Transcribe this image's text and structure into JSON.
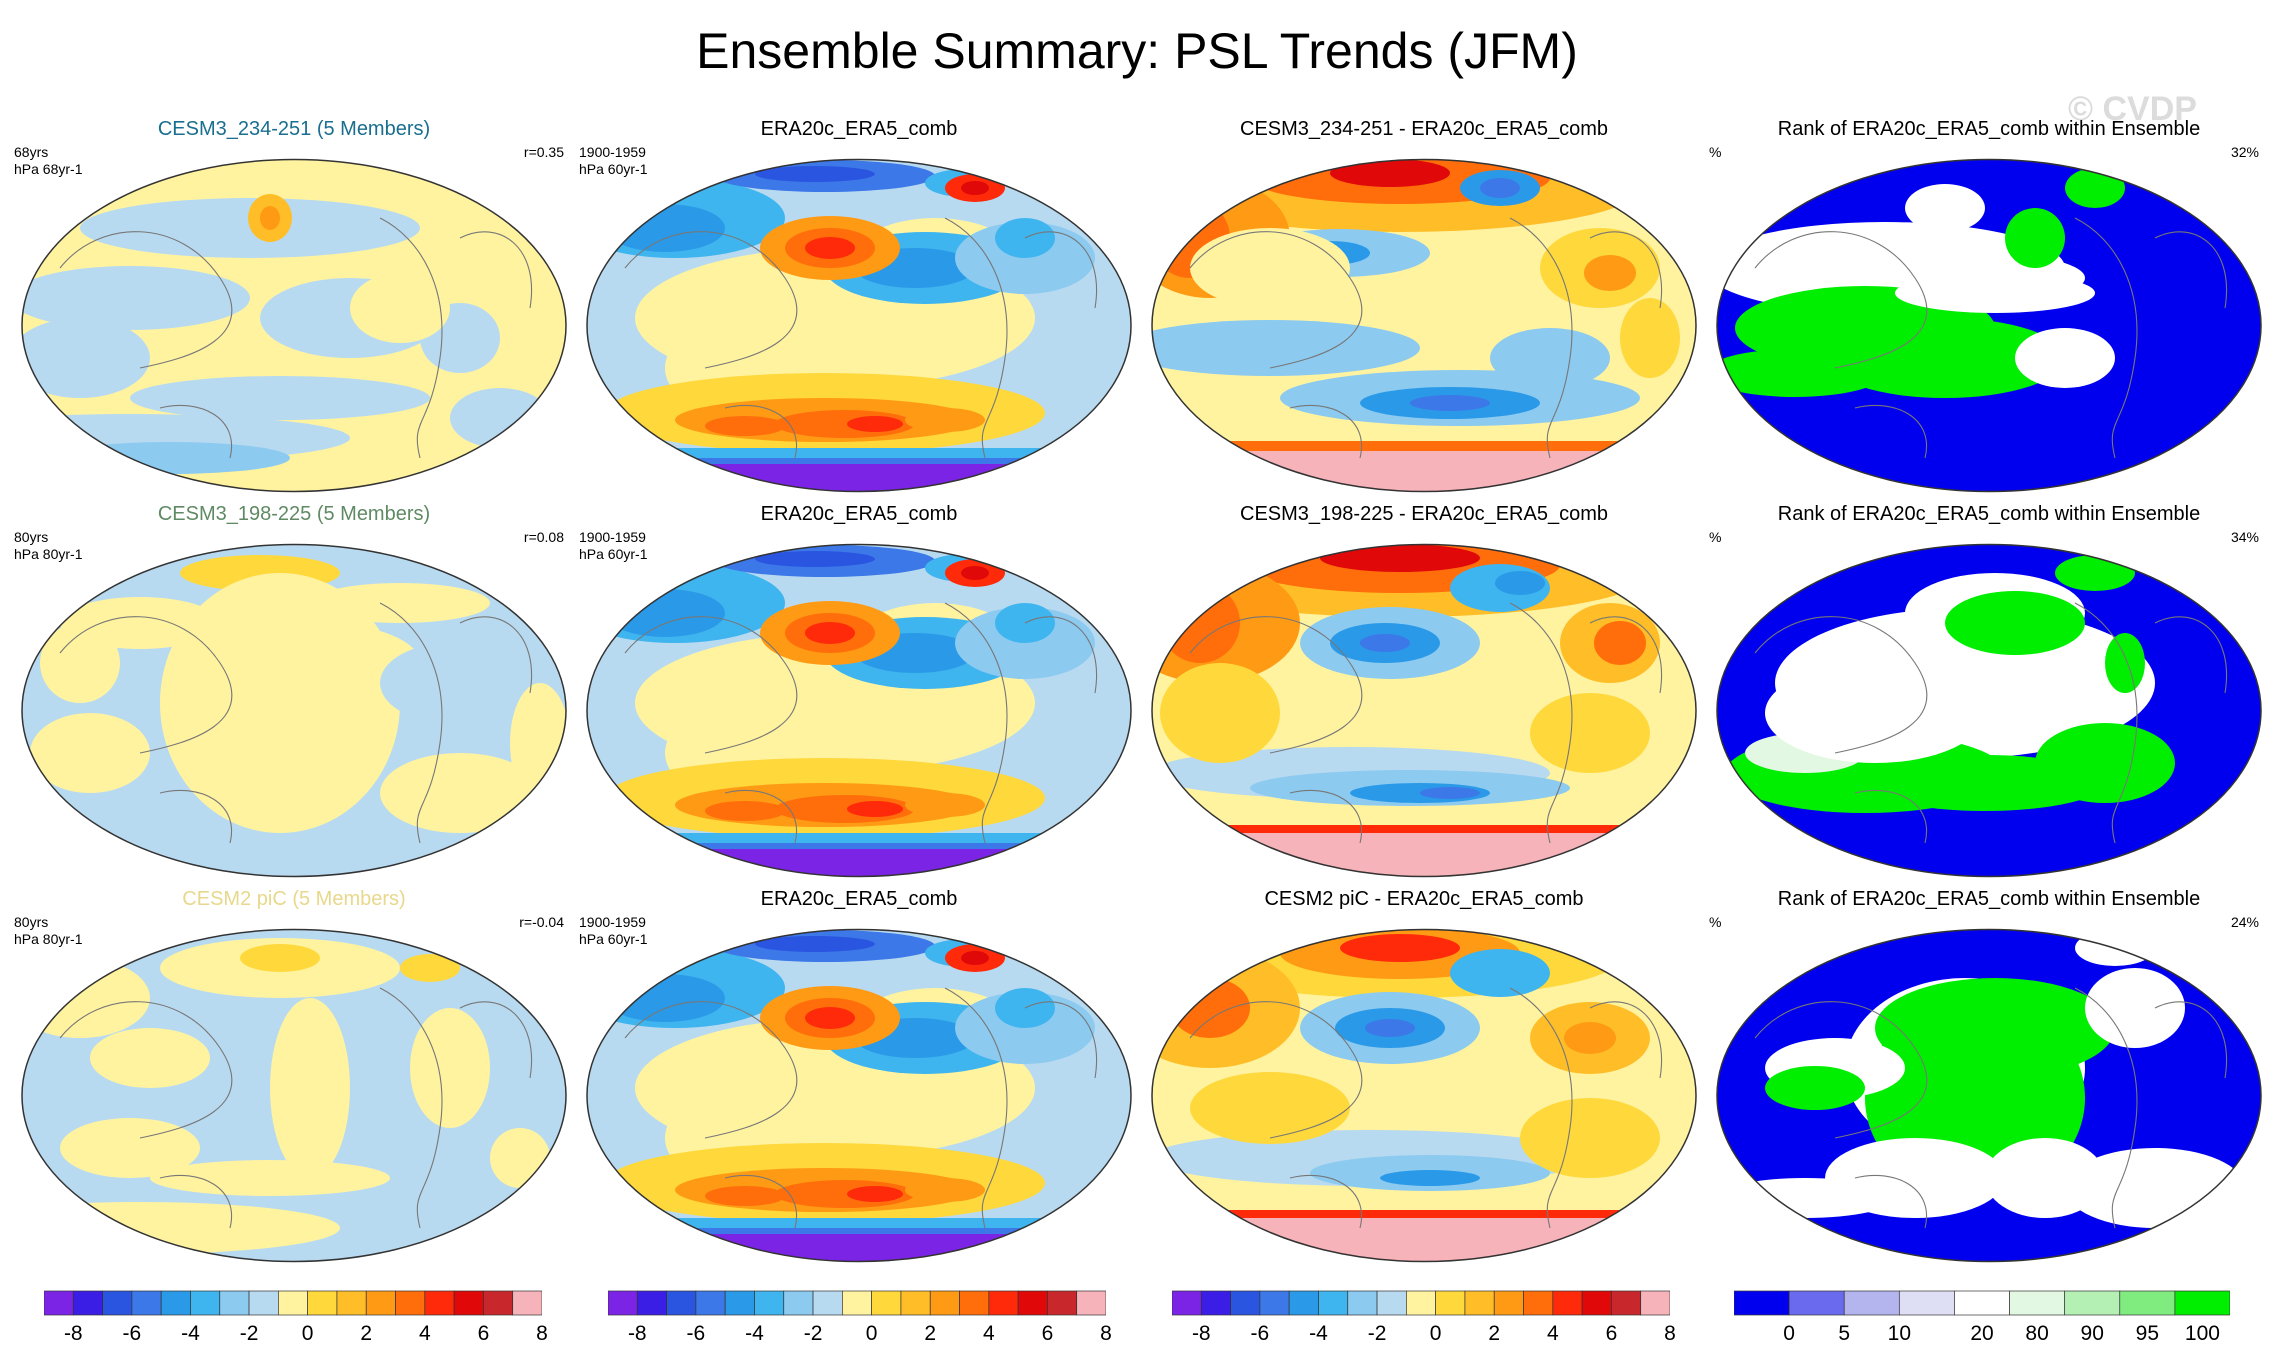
{
  "title": "Ensemble Summary: PSL Trends (JFM)",
  "watermark": "© CVDP",
  "chart_data": {
    "type": "heatmap",
    "projection": "robinson-like global maps",
    "rows": [
      {
        "model": {
          "title": "CESM3_234-251 (5 Members)",
          "title_color": "#1a6e8f",
          "left1": "68yrs",
          "left2": "hPa 68yr-1",
          "right": "r=0.35",
          "pattern": "model_a"
        },
        "obs": {
          "title": "ERA20c_ERA5_comb",
          "left1": "1900-1959",
          "left2": "hPa 60yr-1",
          "right": "",
          "pattern": "obs"
        },
        "diff": {
          "title": "CESM3_234-251 - ERA20c_ERA5_comb",
          "pattern": "diff_a"
        },
        "rank": {
          "title": "Rank of ERA20c_ERA5_comb within Ensemble",
          "left1": "%",
          "right": "32%",
          "pattern": "rank_a"
        }
      },
      {
        "model": {
          "title": "CESM3_198-225 (5 Members)",
          "title_color": "#5f8a63",
          "left1": "80yrs",
          "left2": "hPa 80yr-1",
          "right": "r=0.08",
          "pattern": "model_b"
        },
        "obs": {
          "title": "ERA20c_ERA5_comb",
          "left1": "1900-1959",
          "left2": "hPa 60yr-1",
          "right": "",
          "pattern": "obs"
        },
        "diff": {
          "title": "CESM3_198-225 - ERA20c_ERA5_comb",
          "pattern": "diff_b"
        },
        "rank": {
          "title": "Rank of ERA20c_ERA5_comb within Ensemble",
          "left1": "%",
          "right": "34%",
          "pattern": "rank_b"
        }
      },
      {
        "model": {
          "title": "CESM2 piC (5 Members)",
          "title_color": "#e8d88c",
          "left1": "80yrs",
          "left2": "hPa 80yr-1",
          "right": "r=-0.04",
          "pattern": "model_c"
        },
        "obs": {
          "title": "ERA20c_ERA5_comb",
          "left1": "1900-1959",
          "left2": "hPa 60yr-1",
          "right": "",
          "pattern": "obs"
        },
        "diff": {
          "title": "CESM2 piC - ERA20c_ERA5_comb",
          "pattern": "diff_c"
        },
        "rank": {
          "title": "Rank of ERA20c_ERA5_comb within Ensemble",
          "left1": "%",
          "right": "24%",
          "pattern": "rank_c"
        }
      }
    ],
    "trend_colorbar": {
      "colors": [
        "#7b24e6",
        "#3a1ee6",
        "#2a55e0",
        "#3c78e8",
        "#2a9ae8",
        "#3fb5ef",
        "#8ccaf0",
        "#b8daf0",
        "#fff3a0",
        "#ffd83c",
        "#ffbe28",
        "#ff9a14",
        "#ff6e0a",
        "#ff2a0a",
        "#e00808",
        "#c8282c",
        "#f7b3ba"
      ],
      "tick_labels": [
        "-8",
        "-6",
        "-4",
        "-2",
        "0",
        "2",
        "4",
        "6",
        "8"
      ],
      "tick_values": [
        -8,
        -6,
        -4,
        -2,
        0,
        2,
        4,
        6,
        8
      ],
      "range": [
        -9,
        9
      ]
    },
    "rank_colorbar": {
      "colors": [
        "#0000ee",
        "#6a6aee",
        "#b4b4ee",
        "#dedef5",
        "#ffffff",
        "#e2f8e2",
        "#b4f0b4",
        "#80ec80",
        "#00ee00"
      ],
      "tick_labels": [
        "0",
        "5",
        "10",
        "20",
        "80",
        "90",
        "95",
        "100"
      ]
    }
  }
}
